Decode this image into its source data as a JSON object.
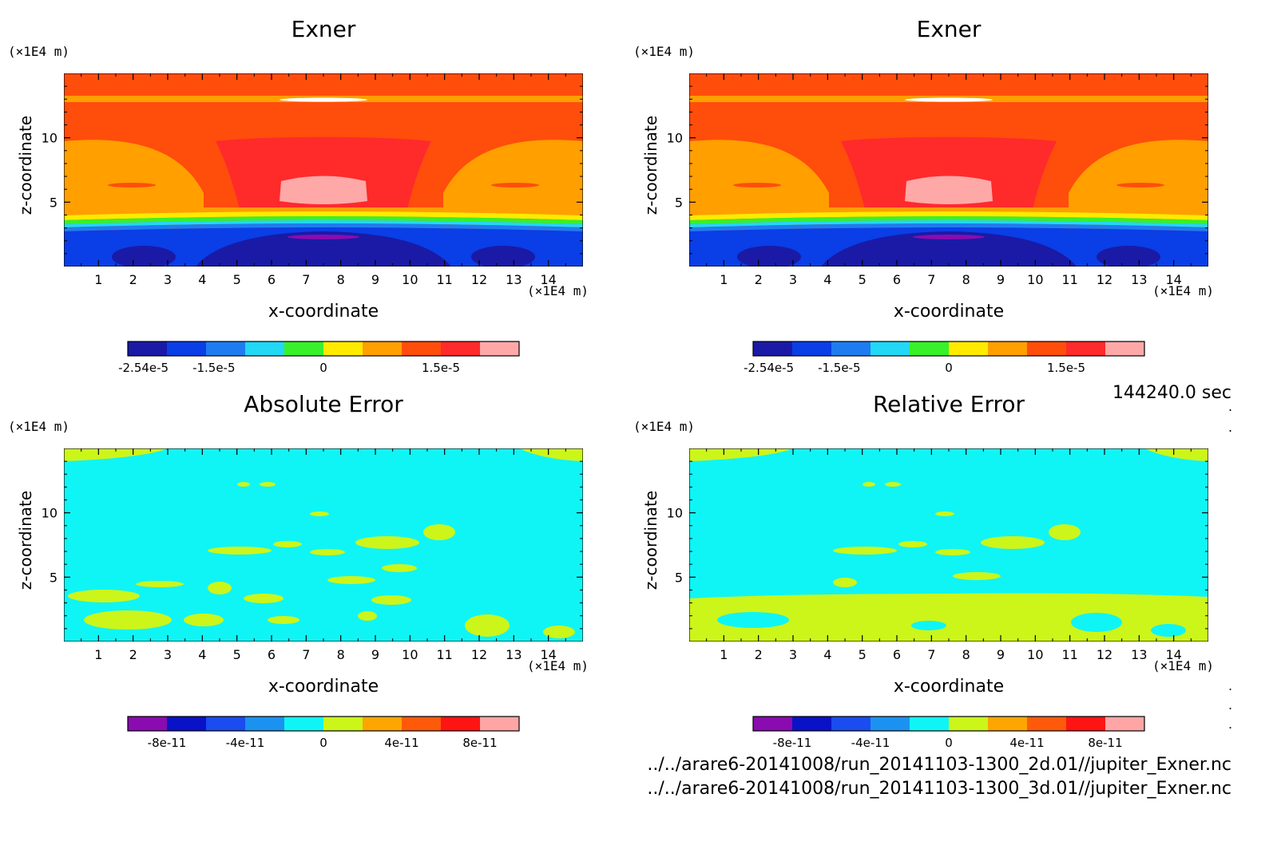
{
  "chart_data": [
    {
      "type": "heatmap",
      "title": "Exner",
      "xlabel": "x-coordinate",
      "ylabel": "z-coordinate",
      "x_unit": "(×1E4 m)",
      "y_unit": "(×1E4 m)",
      "xlim": [
        0,
        15
      ],
      "ylim": [
        0,
        15
      ],
      "x_ticks": [
        1,
        2,
        3,
        4,
        5,
        6,
        7,
        8,
        9,
        10,
        11,
        12,
        13,
        14
      ],
      "y_ticks": [
        5,
        10
      ],
      "colorbar_levels": [
        "#1a1aa6",
        "#0a3ee6",
        "#1f7cf0",
        "#22d8f5",
        "#39f02a",
        "#ffea00",
        "#ff9f00",
        "#ff4d0c",
        "#ff2a2a",
        "#ffa8a8"
      ],
      "colorbar_ticks": [
        "-2.54e-5",
        "-1.5e-5",
        "0",
        "1.5e-5"
      ]
    },
    {
      "type": "heatmap",
      "title": "Exner",
      "xlabel": "x-coordinate",
      "ylabel": "z-coordinate",
      "x_unit": "(×1E4 m)",
      "y_unit": "(×1E4 m)",
      "xlim": [
        0,
        15
      ],
      "ylim": [
        0,
        15
      ],
      "x_ticks": [
        1,
        2,
        3,
        4,
        5,
        6,
        7,
        8,
        9,
        10,
        11,
        12,
        13,
        14
      ],
      "y_ticks": [
        5,
        10
      ],
      "colorbar_levels": [
        "#1a1aa6",
        "#0a3ee6",
        "#1f7cf0",
        "#22d8f5",
        "#39f02a",
        "#ffea00",
        "#ff9f00",
        "#ff4d0c",
        "#ff2a2a",
        "#ffa8a8"
      ],
      "colorbar_ticks": [
        "-2.54e-5",
        "-1.5e-5",
        "0",
        "1.5e-5"
      ]
    },
    {
      "type": "heatmap",
      "title": "Absolute Error",
      "xlabel": "x-coordinate",
      "ylabel": "z-coordinate",
      "x_unit": "(×1E4 m)",
      "y_unit": "(×1E4 m)",
      "xlim": [
        0,
        15
      ],
      "ylim": [
        0,
        15
      ],
      "x_ticks": [
        1,
        2,
        3,
        4,
        5,
        6,
        7,
        8,
        9,
        10,
        11,
        12,
        13,
        14
      ],
      "y_ticks": [
        5,
        10
      ],
      "colorbar_levels": [
        "#8a0cb0",
        "#0a12c8",
        "#1a4cf0",
        "#1c92f0",
        "#0ff5f5",
        "#ccf51a",
        "#ffa500",
        "#ff5a0a",
        "#ff1414",
        "#ffa5a5"
      ],
      "colorbar_ticks": [
        "-8e-11",
        "-4e-11",
        "0",
        "4e-11",
        "8e-11"
      ]
    },
    {
      "type": "heatmap",
      "title": "Relative Error",
      "xlabel": "x-coordinate",
      "ylabel": "z-coordinate",
      "x_unit": "(×1E4 m)",
      "y_unit": "(×1E4 m)",
      "xlim": [
        0,
        15
      ],
      "ylim": [
        0,
        15
      ],
      "x_ticks": [
        1,
        2,
        3,
        4,
        5,
        6,
        7,
        8,
        9,
        10,
        11,
        12,
        13,
        14
      ],
      "y_ticks": [
        5,
        10
      ],
      "colorbar_levels": [
        "#8a0cb0",
        "#0a12c8",
        "#1a4cf0",
        "#1c92f0",
        "#0ff5f5",
        "#ccf51a",
        "#ffa500",
        "#ff5a0a",
        "#ff1414",
        "#ffa5a5"
      ],
      "colorbar_ticks": [
        "-8e-11",
        "-4e-11",
        "0",
        "4e-11",
        "8e-11"
      ]
    }
  ],
  "time_label": "144240.0 sec",
  "file_path_1": "../../arare6-20141008/run_20141103-1300_2d.01//jupiter_Exner.nc",
  "file_path_2": "../../arare6-20141008/run_20141103-1300_3d.01//jupiter_Exner.nc"
}
